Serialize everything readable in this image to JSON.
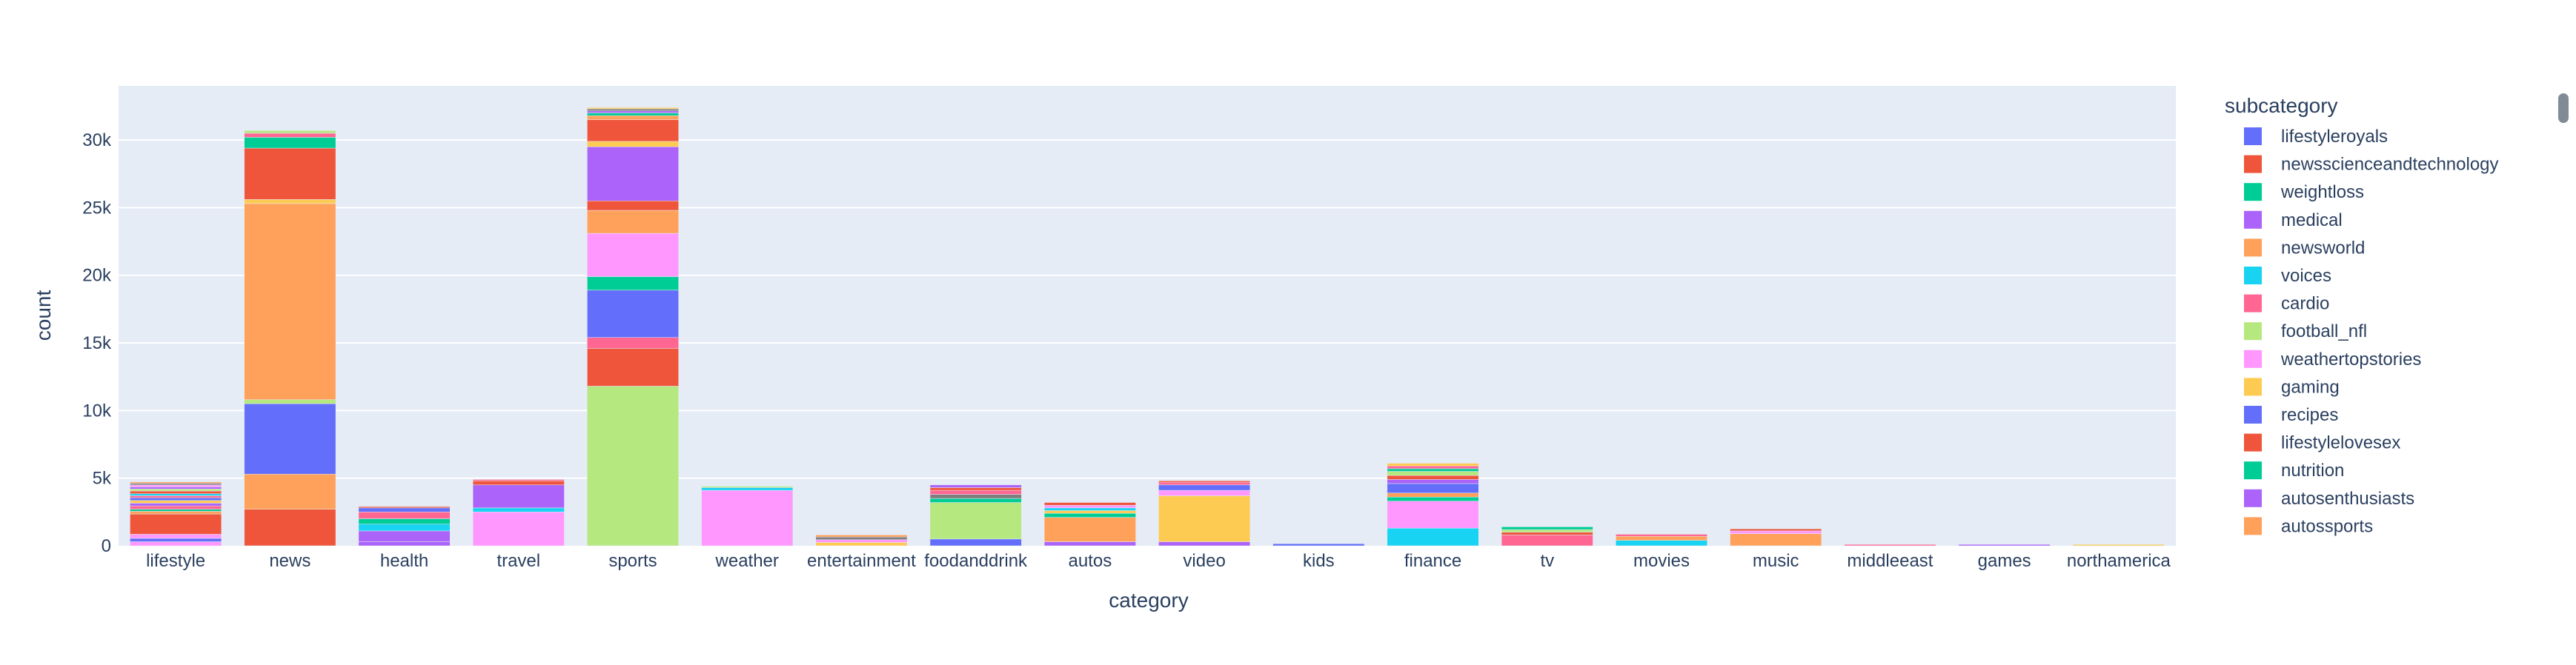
{
  "chart_data": {
    "type": "bar",
    "barmode": "stack",
    "xlabel": "category",
    "ylabel": "count",
    "ylim": [
      0,
      34000
    ],
    "yticks": [
      0,
      5000,
      10000,
      15000,
      20000,
      25000,
      30000
    ],
    "ytick_labels": [
      "0",
      "5k",
      "10k",
      "15k",
      "20k",
      "25k",
      "30k"
    ],
    "grid": true,
    "legend_position": "right",
    "legend_title": "subcategory",
    "categories": [
      "lifestyle",
      "news",
      "health",
      "travel",
      "sports",
      "weather",
      "entertainment",
      "foodanddrink",
      "autos",
      "video",
      "kids",
      "finance",
      "tv",
      "movies",
      "music",
      "middleeast",
      "games",
      "northamerica"
    ],
    "legend_entries": [
      {
        "name": "lifestyleroyals",
        "color": "#636efa"
      },
      {
        "name": "newsscienceandtechnology",
        "color": "#ef553b"
      },
      {
        "name": "weightloss",
        "color": "#00cc96"
      },
      {
        "name": "medical",
        "color": "#ab63fa"
      },
      {
        "name": "newsworld",
        "color": "#ffa15a"
      },
      {
        "name": "voices",
        "color": "#19d3f3"
      },
      {
        "name": "cardio",
        "color": "#ff6692"
      },
      {
        "name": "football_nfl",
        "color": "#b6e880"
      },
      {
        "name": "weathertopstories",
        "color": "#ff97ff"
      },
      {
        "name": "gaming",
        "color": "#fecb52"
      },
      {
        "name": "recipes",
        "color": "#636efa"
      },
      {
        "name": "lifestylelovesex",
        "color": "#ef553b"
      },
      {
        "name": "nutrition",
        "color": "#00cc96"
      },
      {
        "name": "autosenthusiasts",
        "color": "#ab63fa"
      },
      {
        "name": "autossports",
        "color": "#ffa15a"
      }
    ],
    "stacks": [
      {
        "category": "lifestyle",
        "segments": [
          [
            300,
            "#ff97ff"
          ],
          [
            250,
            "#636efa"
          ],
          [
            300,
            "#ff97ff"
          ],
          [
            1500,
            "#ef553b"
          ],
          [
            200,
            "#ffa15a"
          ],
          [
            150,
            "#00cc96"
          ],
          [
            250,
            "#ff6692"
          ],
          [
            200,
            "#ab63fa"
          ],
          [
            200,
            "#fecb52"
          ],
          [
            200,
            "#636efa"
          ],
          [
            150,
            "#ff6692"
          ],
          [
            150,
            "#19d3f3"
          ],
          [
            200,
            "#ef553b"
          ],
          [
            150,
            "#b6e880"
          ],
          [
            150,
            "#ab63fa"
          ],
          [
            150,
            "#ff97ff"
          ],
          [
            120,
            "#7f7f7f"
          ],
          [
            100,
            "#ffa15a"
          ]
        ]
      },
      {
        "category": "news",
        "segments": [
          [
            2700,
            "#ef553b"
          ],
          [
            2600,
            "#ffa15a"
          ],
          [
            5200,
            "#636efa"
          ],
          [
            300,
            "#b6e880"
          ],
          [
            14500,
            "#ffa15a"
          ],
          [
            300,
            "#fecb52"
          ],
          [
            3800,
            "#ef553b"
          ],
          [
            800,
            "#00cc96"
          ],
          [
            300,
            "#ff6692"
          ],
          [
            200,
            "#b6e880"
          ]
        ]
      },
      {
        "category": "health",
        "segments": [
          [
            300,
            "#ab63fa"
          ],
          [
            800,
            "#ab63fa"
          ],
          [
            500,
            "#19d3f3"
          ],
          [
            400,
            "#00cc96"
          ],
          [
            500,
            "#ff6692"
          ],
          [
            300,
            "#636efa"
          ],
          [
            100,
            "#ef553b"
          ]
        ]
      },
      {
        "category": "travel",
        "segments": [
          [
            2500,
            "#ff97ff"
          ],
          [
            300,
            "#19d3f3"
          ],
          [
            1700,
            "#ab63fa"
          ],
          [
            300,
            "#ef553b"
          ],
          [
            100,
            "#ff6692"
          ]
        ]
      },
      {
        "category": "sports",
        "segments": [
          [
            11800,
            "#b6e880"
          ],
          [
            2800,
            "#ef553b"
          ],
          [
            800,
            "#ff6692"
          ],
          [
            3500,
            "#636efa"
          ],
          [
            1000,
            "#00cc96"
          ],
          [
            3200,
            "#ff97ff"
          ],
          [
            1700,
            "#ffa15a"
          ],
          [
            700,
            "#ef553b"
          ],
          [
            4000,
            "#ab63fa"
          ],
          [
            400,
            "#fecb52"
          ],
          [
            1600,
            "#ef553b"
          ],
          [
            300,
            "#ffa15a"
          ],
          [
            200,
            "#00cc96"
          ],
          [
            150,
            "#ab63fa"
          ],
          [
            150,
            "#7f7f7f"
          ],
          [
            100,
            "#fecb52"
          ]
        ]
      },
      {
        "category": "weather",
        "segments": [
          [
            4100,
            "#ff97ff"
          ],
          [
            200,
            "#19d3f3"
          ],
          [
            100,
            "#b6e880"
          ]
        ]
      },
      {
        "category": "entertainment",
        "segments": [
          [
            250,
            "#fecb52"
          ],
          [
            200,
            "#ff97ff"
          ],
          [
            200,
            "#7f7f7f"
          ],
          [
            150,
            "#ffa15a"
          ]
        ]
      },
      {
        "category": "foodanddrink",
        "segments": [
          [
            500,
            "#636efa"
          ],
          [
            2700,
            "#b6e880"
          ],
          [
            300,
            "#00cc96"
          ],
          [
            300,
            "#7f7f7f"
          ],
          [
            300,
            "#ff6692"
          ],
          [
            200,
            "#ef553b"
          ],
          [
            200,
            "#ab63fa"
          ]
        ]
      },
      {
        "category": "autos",
        "segments": [
          [
            300,
            "#ab63fa"
          ],
          [
            1800,
            "#ffa15a"
          ],
          [
            300,
            "#00cc96"
          ],
          [
            200,
            "#fecb52"
          ],
          [
            200,
            "#19d3f3"
          ],
          [
            200,
            "#ff97ff"
          ],
          [
            200,
            "#ef553b"
          ]
        ]
      },
      {
        "category": "video",
        "segments": [
          [
            300,
            "#ab63fa"
          ],
          [
            3400,
            "#fecb52"
          ],
          [
            400,
            "#ff97ff"
          ],
          [
            400,
            "#636efa"
          ],
          [
            200,
            "#ff6692"
          ],
          [
            100,
            "#ef553b"
          ]
        ]
      },
      {
        "category": "kids",
        "segments": [
          [
            150,
            "#636efa"
          ]
        ]
      },
      {
        "category": "finance",
        "segments": [
          [
            1300,
            "#19d3f3"
          ],
          [
            2000,
            "#ff97ff"
          ],
          [
            300,
            "#00cc96"
          ],
          [
            300,
            "#ffa15a"
          ],
          [
            700,
            "#636efa"
          ],
          [
            300,
            "#ab63fa"
          ],
          [
            300,
            "#ef553b"
          ],
          [
            300,
            "#b6e880"
          ],
          [
            200,
            "#00cc96"
          ],
          [
            200,
            "#ff6692"
          ],
          [
            200,
            "#fecb52"
          ]
        ]
      },
      {
        "category": "tv",
        "segments": [
          [
            800,
            "#ff6692"
          ],
          [
            200,
            "#ef553b"
          ],
          [
            200,
            "#b6e880"
          ],
          [
            200,
            "#00cc96"
          ]
        ]
      },
      {
        "category": "movies",
        "segments": [
          [
            400,
            "#19d3f3"
          ],
          [
            300,
            "#ffa15a"
          ],
          [
            150,
            "#ff6692"
          ]
        ]
      },
      {
        "category": "music",
        "segments": [
          [
            900,
            "#ffa15a"
          ],
          [
            200,
            "#ff97ff"
          ],
          [
            150,
            "#ef553b"
          ]
        ]
      },
      {
        "category": "middleeast",
        "segments": [
          [
            100,
            "#ff6692"
          ]
        ]
      },
      {
        "category": "games",
        "segments": [
          [
            100,
            "#ab63fa"
          ]
        ]
      },
      {
        "category": "northamerica",
        "segments": [
          [
            100,
            "#fecb52"
          ]
        ]
      }
    ]
  }
}
